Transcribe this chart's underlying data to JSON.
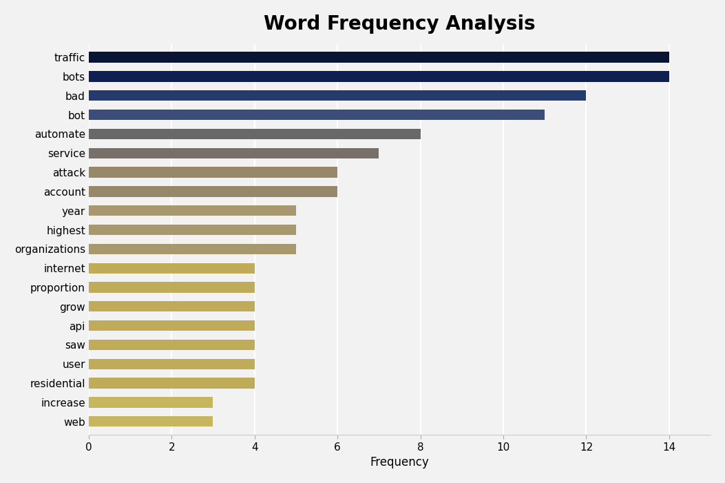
{
  "title": "Word Frequency Analysis",
  "xlabel": "Frequency",
  "categories": [
    "web",
    "increase",
    "residential",
    "user",
    "saw",
    "api",
    "grow",
    "proportion",
    "internet",
    "organizations",
    "highest",
    "year",
    "account",
    "attack",
    "service",
    "automate",
    "bot",
    "bad",
    "bots",
    "traffic"
  ],
  "values": [
    3,
    3,
    4,
    4,
    4,
    4,
    4,
    4,
    4,
    5,
    5,
    5,
    6,
    6,
    7,
    8,
    11,
    12,
    14,
    14
  ],
  "bar_colors": [
    "#c8b560",
    "#c8b560",
    "#bfab58",
    "#bfab58",
    "#bfab58",
    "#bfab58",
    "#bfab58",
    "#bfab58",
    "#bfab58",
    "#a89870",
    "#a89870",
    "#a89870",
    "#98886a",
    "#98886a",
    "#787068",
    "#686868",
    "#3d4d7a",
    "#253a6e",
    "#0f1f52",
    "#0a1535"
  ],
  "background_color": "#f2f2f2",
  "xlim": [
    0,
    15
  ],
  "title_fontsize": 20,
  "label_fontsize": 12,
  "tick_fontsize": 11,
  "bar_height": 0.55
}
